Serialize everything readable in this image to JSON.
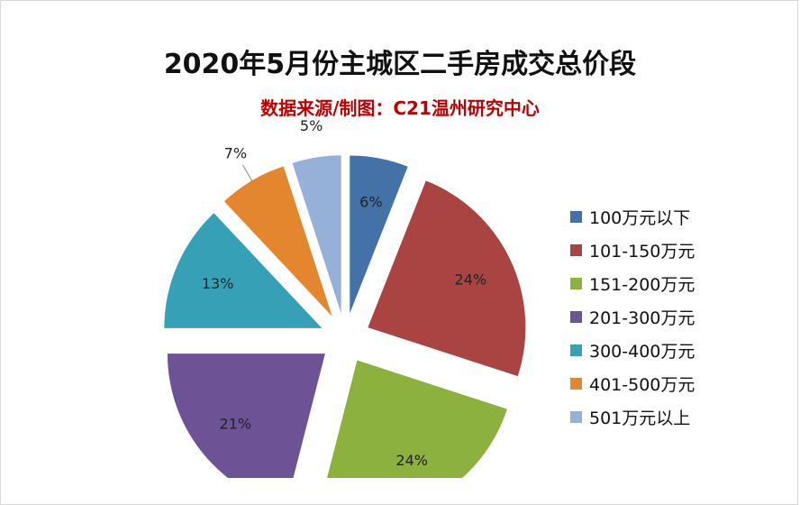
{
  "chart_data": {
    "type": "pie",
    "title": "2020年5月份主城区二手房成交总价段",
    "subtitle": "数据来源/制图：C21温州研究中心",
    "slices": [
      {
        "label": "100万元以下",
        "value": 6,
        "display": "6%",
        "color": "#4472a8"
      },
      {
        "label": "101-150万元",
        "value": 24,
        "display": "24%",
        "color": "#a94442"
      },
      {
        "label": "151-200万元",
        "value": 24,
        "display": "24%",
        "color": "#8db13f"
      },
      {
        "label": "201-300万元",
        "value": 21,
        "display": "21%",
        "color": "#6e5296"
      },
      {
        "label": "300-400万元",
        "value": 13,
        "display": "13%",
        "color": "#36a0b6"
      },
      {
        "label": "401-500万元",
        "value": 7,
        "display": "7%",
        "color": "#e3862e"
      },
      {
        "label": "501万元以上",
        "value": 5,
        "display": "5%",
        "color": "#97b0d8"
      }
    ],
    "legend_position": "right"
  }
}
